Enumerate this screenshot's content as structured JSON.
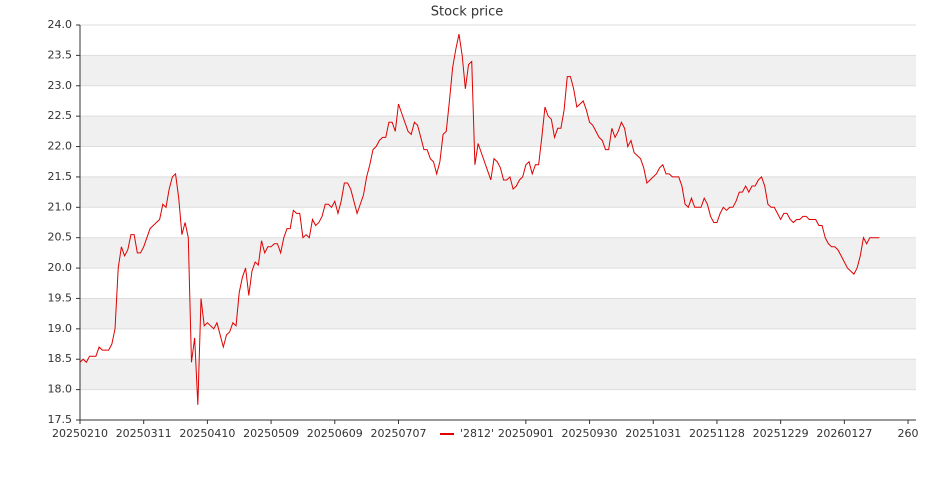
{
  "chart_data": {
    "type": "line",
    "title": "Stock price",
    "series": [
      {
        "name": "'2812'",
        "color": "#e00000",
        "values": [
          18.45,
          18.5,
          18.45,
          18.55,
          18.55,
          18.55,
          18.7,
          18.65,
          18.65,
          18.65,
          18.75,
          19.0,
          20.0,
          20.35,
          20.2,
          20.3,
          20.55,
          20.55,
          20.25,
          20.25,
          20.35,
          20.5,
          20.65,
          20.7,
          20.75,
          20.8,
          21.05,
          21.0,
          21.3,
          21.5,
          21.55,
          21.15,
          20.55,
          20.75,
          20.5,
          18.45,
          18.85,
          17.75,
          19.5,
          19.05,
          19.1,
          19.05,
          19.0,
          19.1,
          18.9,
          18.7,
          18.9,
          18.95,
          19.1,
          19.05,
          19.6,
          19.85,
          20.0,
          19.55,
          19.95,
          20.1,
          20.05,
          20.45,
          20.25,
          20.35,
          20.35,
          20.4,
          20.4,
          20.25,
          20.5,
          20.65,
          20.65,
          20.95,
          20.9,
          20.9,
          20.5,
          20.55,
          20.5,
          20.8,
          20.7,
          20.75,
          20.85,
          21.05,
          21.05,
          21.0,
          21.1,
          20.9,
          21.1,
          21.4,
          21.4,
          21.3,
          21.1,
          20.9,
          21.05,
          21.2,
          21.5,
          21.7,
          21.95,
          22.0,
          22.1,
          22.15,
          22.15,
          22.4,
          22.4,
          22.25,
          22.7,
          22.55,
          22.4,
          22.25,
          22.2,
          22.4,
          22.35,
          22.15,
          21.95,
          21.95,
          21.8,
          21.75,
          21.55,
          21.75,
          22.2,
          22.25,
          22.75,
          23.3,
          23.6,
          23.85,
          23.5,
          22.95,
          23.35,
          23.4,
          21.7,
          22.05,
          21.9,
          21.75,
          21.6,
          21.45,
          21.8,
          21.75,
          21.65,
          21.45,
          21.45,
          21.5,
          21.3,
          21.35,
          21.45,
          21.5,
          21.7,
          21.75,
          21.55,
          21.7,
          21.7,
          22.15,
          22.65,
          22.5,
          22.45,
          22.15,
          22.3,
          22.3,
          22.6,
          23.15,
          23.15,
          22.95,
          22.65,
          22.7,
          22.75,
          22.6,
          22.4,
          22.35,
          22.25,
          22.15,
          22.1,
          21.95,
          21.95,
          22.3,
          22.15,
          22.25,
          22.4,
          22.3,
          22.0,
          22.1,
          21.9,
          21.85,
          21.8,
          21.65,
          21.4,
          21.45,
          21.5,
          21.55,
          21.65,
          21.7,
          21.55,
          21.55,
          21.5,
          21.5,
          21.5,
          21.35,
          21.05,
          21.0,
          21.15,
          21.0,
          21.0,
          21.0,
          21.15,
          21.05,
          20.85,
          20.75,
          20.75,
          20.9,
          21.0,
          20.95,
          21.0,
          21.0,
          21.1,
          21.25,
          21.25,
          21.35,
          21.25,
          21.35,
          21.35,
          21.45,
          21.5,
          21.35,
          21.05,
          21.0,
          21.0,
          20.9,
          20.8,
          20.9,
          20.9,
          20.8,
          20.75,
          20.8,
          20.8,
          20.85,
          20.85,
          20.8,
          20.8,
          20.8,
          20.7,
          20.7,
          20.5,
          20.4,
          20.35,
          20.35,
          20.3,
          20.2,
          20.1,
          20.0,
          19.95,
          19.9,
          20.0,
          20.2,
          20.5,
          20.4,
          20.5,
          20.5,
          20.5,
          20.5
        ]
      }
    ],
    "xlim": [
      0,
      262.5
    ],
    "xticks": [
      {
        "value": 0,
        "label": "20250210"
      },
      {
        "value": 20,
        "label": "20250311"
      },
      {
        "value": 40,
        "label": "20250410"
      },
      {
        "value": 60,
        "label": "20250509"
      },
      {
        "value": 80,
        "label": "20250609"
      },
      {
        "value": 100,
        "label": "20250707"
      },
      {
        "value": 140,
        "label": "20250901"
      },
      {
        "value": 160,
        "label": "20250930"
      },
      {
        "value": 180,
        "label": "20251031"
      },
      {
        "value": 200,
        "label": "20251128"
      },
      {
        "value": 220,
        "label": "20251229"
      },
      {
        "value": 240,
        "label": "20260127"
      },
      {
        "value": 260,
        "label": "260"
      }
    ],
    "ylim": [
      17.5,
      24.0
    ],
    "yticks": [
      17.5,
      {
        "value": 18,
        "label": "18.0"
      },
      18.5,
      {
        "value": 19,
        "label": "19.0"
      },
      19.5,
      {
        "value": 20,
        "label": "20.0"
      },
      20.5,
      {
        "value": 21,
        "label": "21.0"
      },
      21.5,
      {
        "value": 22,
        "label": "22.0"
      },
      22.5,
      {
        "value": 23,
        "label": "23.0"
      },
      23.5,
      {
        "value": 24,
        "label": "24.0"
      }
    ],
    "grid": true,
    "legend": "bottom"
  }
}
